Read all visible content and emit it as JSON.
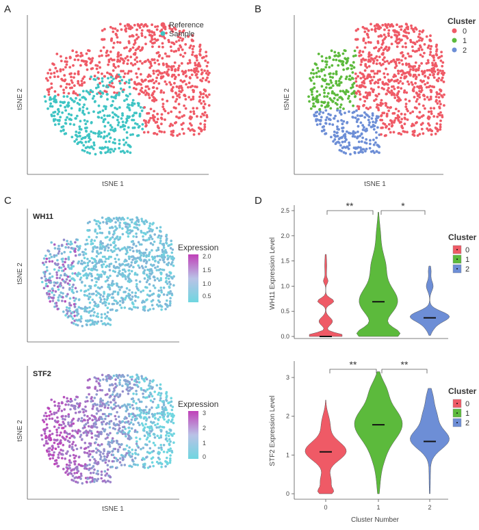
{
  "panels": {
    "A": {
      "label": "A",
      "xlabel": "tSNE 1",
      "ylabel": "tSNE 2"
    },
    "B": {
      "label": "B",
      "xlabel": "tSNE 1",
      "ylabel": "tSNE 2"
    },
    "C": {
      "label": "C"
    },
    "C_top": {
      "gene": "WH11",
      "ylabel": "tSNE 2",
      "legend_title": "Expression",
      "ticks": [
        "2.0",
        "1.5",
        "1.0",
        "0.5"
      ]
    },
    "C_bottom": {
      "gene": "STF2",
      "ylabel": "tSNE 2",
      "xlabel": "tSNE 1",
      "legend_title": "Expression",
      "ticks": [
        "3",
        "2",
        "1",
        "0"
      ]
    },
    "D": {
      "label": "D"
    }
  },
  "colors": {
    "cluster0": "#ef5a66",
    "cluster1": "#5cba3c",
    "cluster2": "#6d8ed6",
    "reference": "#ef5a66",
    "sample": "#3fc4c4",
    "low": "#6fd6e0",
    "high": "#c040b8"
  },
  "chart_data": [
    {
      "type": "scatter",
      "panel": "A",
      "xlabel": "tSNE 1",
      "ylabel": "tSNE 2",
      "legend": [
        "Reference",
        "Sample"
      ],
      "legend_position": "top-right"
    },
    {
      "type": "scatter",
      "panel": "B",
      "xlabel": "tSNE 1",
      "ylabel": "tSNE 2",
      "legend_title": "Cluster",
      "legend": [
        "0",
        "1",
        "2"
      ],
      "legend_position": "top-right"
    },
    {
      "type": "scatter",
      "panel": "C-top",
      "title": "WH11",
      "ylabel": "tSNE 2",
      "colorbar_title": "Expression",
      "colorbar_range": [
        0.3,
        2.0
      ],
      "colorbar_ticks": [
        2.0,
        1.5,
        1.0,
        0.5
      ]
    },
    {
      "type": "scatter",
      "panel": "C-bottom",
      "title": "STF2",
      "xlabel": "tSNE 1",
      "ylabel": "tSNE 2",
      "colorbar_title": "Expression",
      "colorbar_range": [
        0,
        3.2
      ],
      "colorbar_ticks": [
        3,
        2,
        1,
        0
      ]
    },
    {
      "type": "violin",
      "panel": "D-top",
      "ylabel": "WH11 Expression Level",
      "categories": [
        "0",
        "1",
        "2"
      ],
      "medians": [
        0.0,
        0.69,
        0.37
      ],
      "ranges": [
        [
          0.0,
          1.63
        ],
        [
          0.0,
          2.47
        ],
        [
          0.02,
          1.4
        ]
      ],
      "ylim": [
        0,
        2.5
      ],
      "yticks": [
        "0.0",
        "0.5",
        "1.0",
        "1.5",
        "2.0",
        "2.5"
      ],
      "significance": [
        {
          "from": "0",
          "to": "1",
          "label": "**"
        },
        {
          "from": "1",
          "to": "2",
          "label": "*"
        }
      ],
      "legend_title": "Cluster",
      "legend": [
        "0",
        "1",
        "2"
      ]
    },
    {
      "type": "violin",
      "panel": "D-bottom",
      "ylabel": "STF2 Expression Level",
      "xlabel": "Cluster Number",
      "categories": [
        "0",
        "1",
        "2"
      ],
      "medians": [
        1.08,
        1.78,
        1.35
      ],
      "ranges": [
        [
          0.0,
          2.42
        ],
        [
          0.0,
          3.15
        ],
        [
          0.0,
          2.72
        ]
      ],
      "ylim": [
        0,
        3
      ],
      "yticks": [
        "0",
        "1",
        "2",
        "3"
      ],
      "significance": [
        {
          "from": "0",
          "to": "1",
          "label": "**"
        },
        {
          "from": "1",
          "to": "2",
          "label": "**"
        }
      ],
      "legend_title": "Cluster",
      "legend": [
        "0",
        "1",
        "2"
      ]
    }
  ],
  "legends": {
    "A": [
      "Reference",
      "Sample"
    ],
    "B_title": "Cluster",
    "B": [
      "0",
      "1",
      "2"
    ],
    "D_title": "Cluster",
    "D": [
      "0",
      "1",
      "2"
    ]
  },
  "violin": {
    "top": {
      "ylabel": "WH11 Expression Level",
      "yticks": [
        "0.0",
        "0.5",
        "1.0",
        "1.5",
        "2.0",
        "2.5"
      ],
      "sig": [
        "**",
        "*"
      ]
    },
    "bottom": {
      "ylabel": "STF2 Expression Level",
      "xlabel": "Cluster Number",
      "yticks": [
        "0",
        "1",
        "2",
        "3"
      ],
      "xticks": [
        "0",
        "1",
        "2"
      ],
      "sig": [
        "**",
        "**"
      ]
    }
  }
}
